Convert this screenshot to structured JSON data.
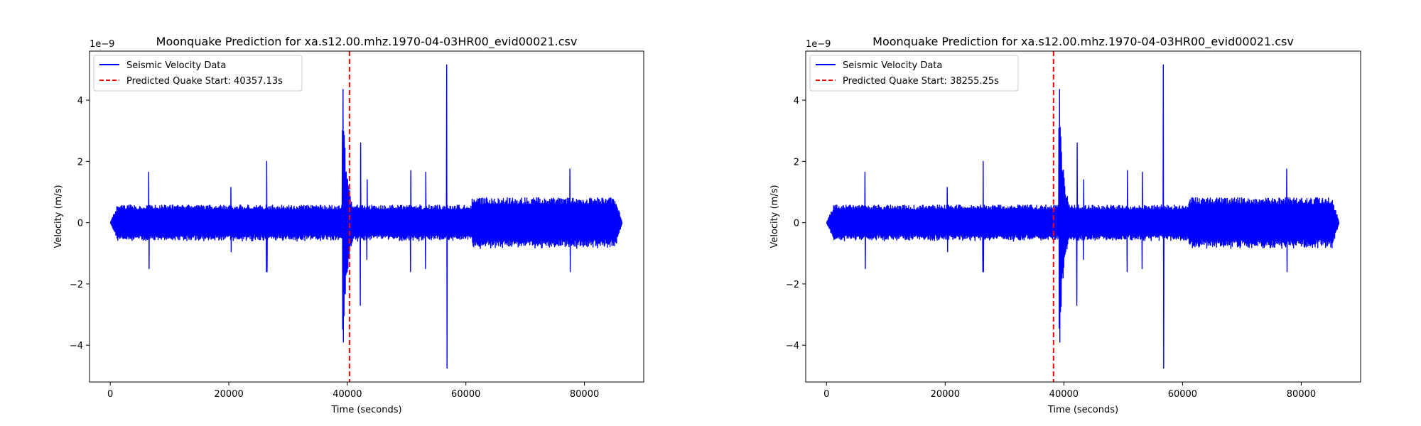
{
  "chart_data": [
    {
      "type": "line",
      "title": "Moonquake Prediction for xa.s12.00.mhz.1970-04-03HR00_evid00021.csv",
      "xlabel": "Time (seconds)",
      "ylabel": "Velocity (m/s)",
      "y_offset_label": "1e−9",
      "xlim": [
        -3500,
        90000
      ],
      "ylim": [
        -5.2,
        5.6
      ],
      "x_ticks": [
        0,
        20000,
        40000,
        60000,
        80000
      ],
      "x_tick_labels": [
        "0",
        "20000",
        "40000",
        "60000",
        "80000"
      ],
      "y_ticks": [
        -4,
        -2,
        0,
        2,
        4
      ],
      "y_tick_labels": [
        "−4",
        "−2",
        "0",
        "2",
        "4"
      ],
      "grid": false,
      "legend_position": "upper-left",
      "series": [
        {
          "name": "Seismic Velocity Data",
          "color": "#0000ff",
          "style": "solid",
          "x_range": [
            0,
            86400
          ],
          "baseline_amplitude_segments": [
            {
              "x": [
                0,
                61000
              ],
              "amplitude": 0.55
            },
            {
              "x": [
                61000,
                86400
              ],
              "amplitude": 0.78
            }
          ],
          "spikes": [
            {
              "x": 6500,
              "max": 1.65,
              "min": -1.5
            },
            {
              "x": 20400,
              "max": 1.15,
              "min": -0.95
            },
            {
              "x": 26400,
              "max": 2.0,
              "min": -1.6
            },
            {
              "x": 39300,
              "max": 4.35,
              "min": -3.9
            },
            {
              "x": 42200,
              "max": 2.6,
              "min": -2.7
            },
            {
              "x": 43300,
              "max": 1.4,
              "min": -1.2
            },
            {
              "x": 50700,
              "max": 1.7,
              "min": -1.6
            },
            {
              "x": 53200,
              "max": 1.65,
              "min": -1.5
            },
            {
              "x": 56800,
              "max": 5.15,
              "min": -4.75
            },
            {
              "x": 77600,
              "max": 1.75,
              "min": -1.6
            }
          ]
        },
        {
          "name": "Predicted Quake Start: 40357.13s",
          "color": "#ff0000",
          "style": "dashed",
          "x": 40357.13
        }
      ]
    },
    {
      "type": "line",
      "title": "Moonquake Prediction for xa.s12.00.mhz.1970-04-03HR00_evid00021.csv",
      "xlabel": "Time (seconds)",
      "ylabel": "Velocity (m/s)",
      "y_offset_label": "1e−9",
      "xlim": [
        -3500,
        90000
      ],
      "ylim": [
        -5.2,
        5.6
      ],
      "x_ticks": [
        0,
        20000,
        40000,
        60000,
        80000
      ],
      "x_tick_labels": [
        "0",
        "20000",
        "40000",
        "60000",
        "80000"
      ],
      "y_ticks": [
        -4,
        -2,
        0,
        2,
        4
      ],
      "y_tick_labels": [
        "−4",
        "−2",
        "0",
        "2",
        "4"
      ],
      "grid": false,
      "legend_position": "upper-left",
      "series": [
        {
          "name": "Seismic Velocity Data",
          "color": "#0000ff",
          "style": "solid",
          "x_range": [
            0,
            86400
          ],
          "baseline_amplitude_segments": [
            {
              "x": [
                0,
                61000
              ],
              "amplitude": 0.55
            },
            {
              "x": [
                61000,
                86400
              ],
              "amplitude": 0.78
            }
          ],
          "spikes": [
            {
              "x": 6500,
              "max": 1.65,
              "min": -1.5
            },
            {
              "x": 20400,
              "max": 1.15,
              "min": -0.95
            },
            {
              "x": 26400,
              "max": 2.0,
              "min": -1.6
            },
            {
              "x": 39300,
              "max": 4.35,
              "min": -3.9
            },
            {
              "x": 42200,
              "max": 2.6,
              "min": -2.7
            },
            {
              "x": 43300,
              "max": 1.4,
              "min": -1.2
            },
            {
              "x": 50700,
              "max": 1.7,
              "min": -1.6
            },
            {
              "x": 53200,
              "max": 1.65,
              "min": -1.5
            },
            {
              "x": 56800,
              "max": 5.15,
              "min": -4.75
            },
            {
              "x": 77600,
              "max": 1.75,
              "min": -1.6
            }
          ]
        },
        {
          "name": "Predicted Quake Start: 38255.25s",
          "color": "#ff0000",
          "style": "dashed",
          "x": 38255.25
        }
      ]
    }
  ]
}
